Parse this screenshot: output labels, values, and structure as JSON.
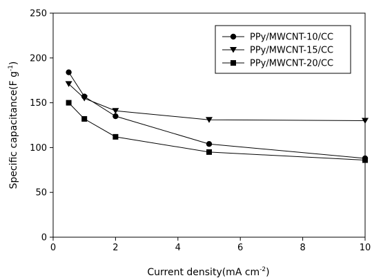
{
  "chart_data": {
    "type": "line",
    "xlabel": "Current density(mA cm",
    "xlabel_sup": "-2",
    "xlabel_end": ")",
    "ylabel": "Specific capacitance(F g",
    "ylabel_sup": "-1",
    "ylabel_end": ")",
    "xlim": [
      0,
      10
    ],
    "ylim": [
      0,
      250
    ],
    "xticks": [
      "0",
      "2",
      "4",
      "6",
      "8",
      "10"
    ],
    "yticks": [
      "0",
      "50",
      "100",
      "150",
      "200",
      "250"
    ],
    "grid": false,
    "legend_position": "top-right",
    "series": [
      {
        "name": "PPy/MWCNT-10/CC",
        "marker": "circle",
        "color": "#000000",
        "x": [
          0.5,
          1,
          2,
          5,
          10
        ],
        "y": [
          184,
          157,
          135,
          104,
          88
        ]
      },
      {
        "name": "PPy/MWCNT-15/CC",
        "marker": "triangle-down",
        "color": "#000000",
        "x": [
          0.5,
          1,
          2,
          5,
          10
        ],
        "y": [
          171,
          155,
          141,
          131,
          130
        ]
      },
      {
        "name": "PPy/MWCNT-20/CC",
        "marker": "square",
        "color": "#000000",
        "x": [
          0.5,
          1,
          2,
          5,
          10
        ],
        "y": [
          150,
          132,
          112,
          95,
          86
        ]
      }
    ]
  }
}
